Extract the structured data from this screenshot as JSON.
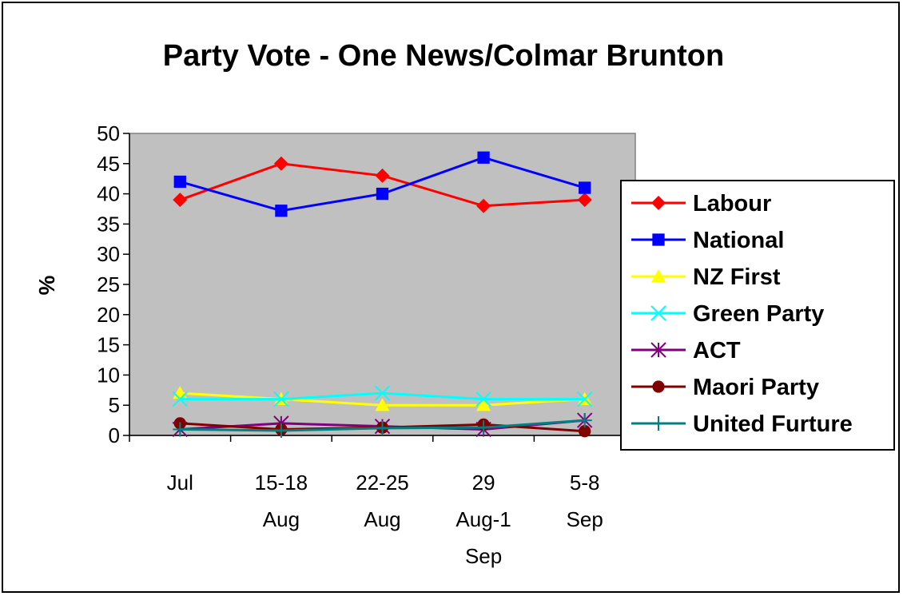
{
  "chart_data": {
    "type": "line",
    "title": "Party Vote - One News/Colmar Brunton",
    "ylabel": "%",
    "xlabel": "",
    "ylim": [
      0,
      50
    ],
    "yticks": [
      0,
      5,
      10,
      15,
      20,
      25,
      30,
      35,
      40,
      45,
      50
    ],
    "categories": [
      [
        "Jul"
      ],
      [
        "15-18",
        "Aug"
      ],
      [
        "22-25",
        "Aug"
      ],
      [
        "29",
        "Aug-1",
        "Sep"
      ],
      [
        "5-8",
        "Sep"
      ]
    ],
    "grid": false,
    "legend_position": "right",
    "series": [
      {
        "name": "Labour",
        "color": "#ff0000",
        "marker": "diamond",
        "values": [
          39,
          45,
          43,
          38,
          39
        ]
      },
      {
        "name": "National",
        "color": "#0000ff",
        "marker": "square",
        "values": [
          42,
          37.2,
          40,
          46,
          41
        ]
      },
      {
        "name": "NZ First",
        "color": "#ffff00",
        "marker": "triangle",
        "values": [
          7,
          6,
          5,
          5,
          6
        ]
      },
      {
        "name": "Green Party",
        "color": "#00ffff",
        "marker": "x",
        "values": [
          6,
          6,
          7,
          6,
          6
        ]
      },
      {
        "name": "ACT",
        "color": "#800080",
        "marker": "star",
        "values": [
          1,
          2,
          1.5,
          1,
          2.5
        ]
      },
      {
        "name": "Maori Party",
        "color": "#800000",
        "marker": "circle",
        "values": [
          2,
          1,
          1.3,
          1.8,
          0.7
        ]
      },
      {
        "name": "United Furture",
        "color": "#008080",
        "marker": "plus",
        "values": [
          1,
          0.8,
          1.2,
          1.3,
          2.5
        ]
      }
    ],
    "plot_background": "#c0c0c0"
  }
}
